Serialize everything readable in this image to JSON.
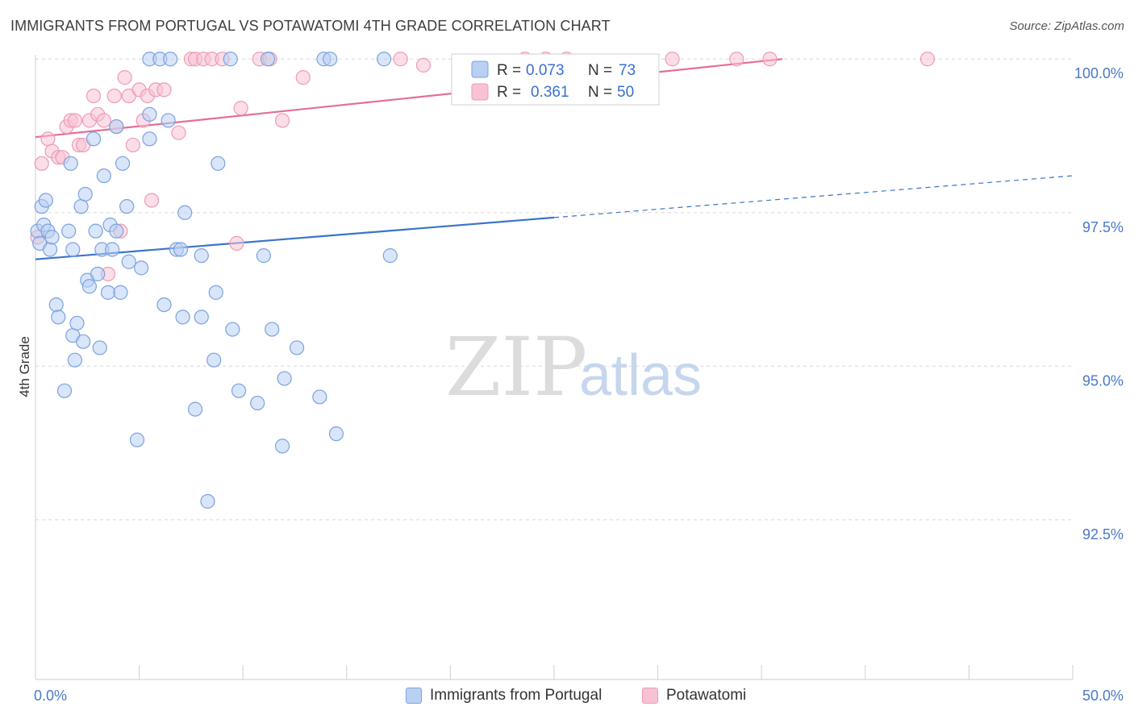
{
  "title": "IMMIGRANTS FROM PORTUGAL VS POTAWATOMI 4TH GRADE CORRELATION CHART",
  "source": "Source: ZipAtlas.com",
  "watermark": {
    "zip": "ZIP",
    "atlas": "atlas"
  },
  "colors": {
    "blue_fill": "#b9d0f2",
    "blue_stroke": "#7aa3e0",
    "blue_line": "#3a74c9",
    "pink_fill": "#f7c3d4",
    "pink_stroke": "#ee9ab6",
    "pink_line": "#e46e97",
    "axis_text": "#4a78c8",
    "grid": "#d8d8d8"
  },
  "legend": {
    "rows": [
      {
        "r_label": "R =",
        "r_value": "0.073",
        "n_label": "N =",
        "n_value": "73"
      },
      {
        "r_label": "R =",
        "r_value": "0.361",
        "n_label": "N =",
        "n_value": "50"
      }
    ]
  },
  "bottom_legend": [
    "Immigrants from Portugal",
    "Potawatomi"
  ],
  "chart_data": {
    "type": "scatter",
    "xlabel": "",
    "ylabel": "4th Grade",
    "xlim": [
      0,
      50
    ],
    "ylim": [
      89.9,
      100.2
    ],
    "x_tick_labels": [
      {
        "value": 0,
        "label": "0.0%"
      },
      {
        "value": 50,
        "label": "50.0%"
      }
    ],
    "x_minor_ticks": [
      0,
      5,
      10,
      15,
      20,
      25,
      30,
      35,
      40,
      45,
      50
    ],
    "y_tick_labels": [
      {
        "value": 100,
        "label": "100.0%"
      },
      {
        "value": 97.5,
        "label": "97.5%"
      },
      {
        "value": 95,
        "label": "95.0%"
      },
      {
        "value": 92.5,
        "label": "92.5%"
      }
    ],
    "grid": "horizontal dashed",
    "legend_position": "top-center",
    "series": [
      {
        "name": "Immigrants from Portugal",
        "r": 0.073,
        "n": 73,
        "trend": {
          "x0": 0,
          "y0": 96.74,
          "x1": 25,
          "y1": 97.42,
          "dashed_to_x": 50,
          "dashed_to_y": 98.1
        },
        "points": [
          [
            0.1,
            97.2
          ],
          [
            0.2,
            97.0
          ],
          [
            0.3,
            97.6
          ],
          [
            0.4,
            97.3
          ],
          [
            0.5,
            97.7
          ],
          [
            0.6,
            97.2
          ],
          [
            0.7,
            96.9
          ],
          [
            0.8,
            97.1
          ],
          [
            1.0,
            96.0
          ],
          [
            1.1,
            95.8
          ],
          [
            1.4,
            94.6
          ],
          [
            1.6,
            97.2
          ],
          [
            1.7,
            98.3
          ],
          [
            1.8,
            95.5
          ],
          [
            1.8,
            96.9
          ],
          [
            1.9,
            95.1
          ],
          [
            2.0,
            95.7
          ],
          [
            2.2,
            97.6
          ],
          [
            2.3,
            95.4
          ],
          [
            2.4,
            97.8
          ],
          [
            2.5,
            96.4
          ],
          [
            2.6,
            96.3
          ],
          [
            2.8,
            98.7
          ],
          [
            2.9,
            97.2
          ],
          [
            3.0,
            96.5
          ],
          [
            3.1,
            95.3
          ],
          [
            3.2,
            96.9
          ],
          [
            3.3,
            98.1
          ],
          [
            3.5,
            96.2
          ],
          [
            3.6,
            97.3
          ],
          [
            3.7,
            96.9
          ],
          [
            3.9,
            97.2
          ],
          [
            3.9,
            98.9
          ],
          [
            4.1,
            96.2
          ],
          [
            4.2,
            98.3
          ],
          [
            4.4,
            97.6
          ],
          [
            4.5,
            96.7
          ],
          [
            4.9,
            93.8
          ],
          [
            5.1,
            96.6
          ],
          [
            5.5,
            98.7
          ],
          [
            5.5,
            99.1
          ],
          [
            5.5,
            100.0
          ],
          [
            6.0,
            100.0
          ],
          [
            6.2,
            96.0
          ],
          [
            6.4,
            99.0
          ],
          [
            6.5,
            100.0
          ],
          [
            6.8,
            96.9
          ],
          [
            7.0,
            96.9
          ],
          [
            7.1,
            95.8
          ],
          [
            7.2,
            97.5
          ],
          [
            7.7,
            94.3
          ],
          [
            8.0,
            96.8
          ],
          [
            8.0,
            95.8
          ],
          [
            8.3,
            92.8
          ],
          [
            8.6,
            95.1
          ],
          [
            8.7,
            96.2
          ],
          [
            8.8,
            98.3
          ],
          [
            9.4,
            100.0
          ],
          [
            9.5,
            95.6
          ],
          [
            9.8,
            94.6
          ],
          [
            10.7,
            94.4
          ],
          [
            11.0,
            96.8
          ],
          [
            11.2,
            100.0
          ],
          [
            11.4,
            95.6
          ],
          [
            11.9,
            93.7
          ],
          [
            12.0,
            94.8
          ],
          [
            12.6,
            95.3
          ],
          [
            13.7,
            94.5
          ],
          [
            13.9,
            100.0
          ],
          [
            14.2,
            100.0
          ],
          [
            14.5,
            93.9
          ],
          [
            16.8,
            100.0
          ],
          [
            17.1,
            96.8
          ]
        ]
      },
      {
        "name": "Potawatomi",
        "r": 0.361,
        "n": 50,
        "trend": {
          "x0": 0,
          "y0": 98.73,
          "x1": 36,
          "y1": 100.0
        },
        "points": [
          [
            0.1,
            97.1
          ],
          [
            0.3,
            98.3
          ],
          [
            0.6,
            98.7
          ],
          [
            0.8,
            98.5
          ],
          [
            1.1,
            98.4
          ],
          [
            1.3,
            98.4
          ],
          [
            1.5,
            98.9
          ],
          [
            1.7,
            99.0
          ],
          [
            1.9,
            99.0
          ],
          [
            2.1,
            98.6
          ],
          [
            2.3,
            98.6
          ],
          [
            2.6,
            99.0
          ],
          [
            2.8,
            99.4
          ],
          [
            3.0,
            99.1
          ],
          [
            3.3,
            99.0
          ],
          [
            3.5,
            96.5
          ],
          [
            3.8,
            99.4
          ],
          [
            3.9,
            98.9
          ],
          [
            4.1,
            97.2
          ],
          [
            4.3,
            99.7
          ],
          [
            4.5,
            99.4
          ],
          [
            4.7,
            98.6
          ],
          [
            5.0,
            99.5
          ],
          [
            5.2,
            99.0
          ],
          [
            5.4,
            99.4
          ],
          [
            5.6,
            97.7
          ],
          [
            5.8,
            99.5
          ],
          [
            6.2,
            99.5
          ],
          [
            6.9,
            98.8
          ],
          [
            7.5,
            100.0
          ],
          [
            7.7,
            100.0
          ],
          [
            8.1,
            100.0
          ],
          [
            8.5,
            100.0
          ],
          [
            9.0,
            100.0
          ],
          [
            9.7,
            97.0
          ],
          [
            9.9,
            99.2
          ],
          [
            10.8,
            100.0
          ],
          [
            11.3,
            100.0
          ],
          [
            11.9,
            99.0
          ],
          [
            12.9,
            99.7
          ],
          [
            17.6,
            100.0
          ],
          [
            18.7,
            99.9
          ],
          [
            22.2,
            99.7
          ],
          [
            23.6,
            100.0
          ],
          [
            24.6,
            100.0
          ],
          [
            25.6,
            100.0
          ],
          [
            30.7,
            100.0
          ],
          [
            33.8,
            100.0
          ],
          [
            35.4,
            100.0
          ],
          [
            43.0,
            100.0
          ]
        ]
      }
    ]
  }
}
